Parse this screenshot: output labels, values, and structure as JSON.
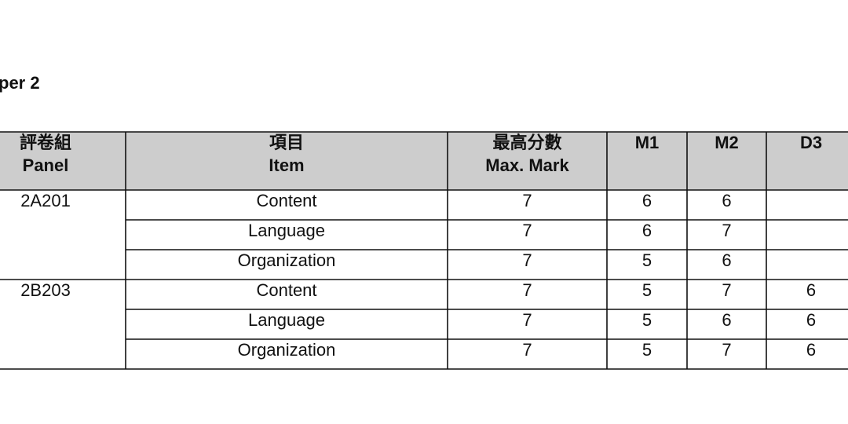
{
  "heading": "per 2",
  "table": {
    "header": [
      [
        "評卷組",
        "Panel"
      ],
      [
        "項目",
        "Item"
      ],
      [
        "最高分數",
        "Max. Mark"
      ],
      [
        "M1"
      ],
      [
        "M2"
      ],
      [
        "D3"
      ]
    ],
    "groups": [
      {
        "panel": "2A201",
        "rows": [
          [
            "Content",
            7,
            6,
            6,
            null
          ],
          [
            "Language",
            7,
            6,
            7,
            null
          ],
          [
            "Organization",
            7,
            5,
            6,
            null
          ]
        ]
      },
      {
        "panel": "2B203",
        "rows": [
          [
            "Content",
            7,
            5,
            7,
            6
          ],
          [
            "Language",
            7,
            5,
            6,
            6
          ],
          [
            "Organization",
            7,
            5,
            7,
            6
          ]
        ]
      }
    ]
  }
}
